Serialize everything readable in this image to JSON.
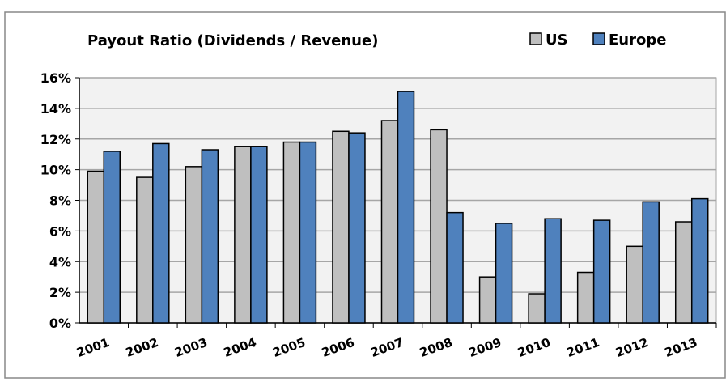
{
  "chart_data": {
    "type": "bar",
    "title": "Payout Ratio (Dividends / Revenue)",
    "categories": [
      "2001",
      "2002",
      "2003",
      "2004",
      "2005",
      "2006",
      "2007",
      "2008",
      "2009",
      "2010",
      "2011",
      "2012",
      "2013"
    ],
    "series": [
      {
        "name": "US",
        "color": "#bfbfbf",
        "values": [
          9.9,
          9.5,
          10.2,
          11.5,
          11.8,
          12.5,
          13.2,
          12.6,
          3.0,
          1.9,
          3.3,
          5.0,
          6.6
        ]
      },
      {
        "name": "Europe",
        "color": "#4f81bd",
        "values": [
          11.2,
          11.7,
          11.3,
          11.5,
          11.8,
          12.4,
          15.1,
          7.2,
          6.5,
          6.8,
          6.7,
          7.9,
          8.1
        ]
      }
    ],
    "ylim": [
      0,
      16
    ],
    "yticks": [
      {
        "value": 0,
        "label": "0%"
      },
      {
        "value": 2,
        "label": "2%"
      },
      {
        "value": 4,
        "label": "4%"
      },
      {
        "value": 6,
        "label": "6%"
      },
      {
        "value": 8,
        "label": "8%"
      },
      {
        "value": 10,
        "label": "10%"
      },
      {
        "value": 12,
        "label": "12%"
      },
      {
        "value": 14,
        "label": "14%"
      },
      {
        "value": 16,
        "label": "16%"
      }
    ],
    "grid": true,
    "legend": "top-right"
  }
}
